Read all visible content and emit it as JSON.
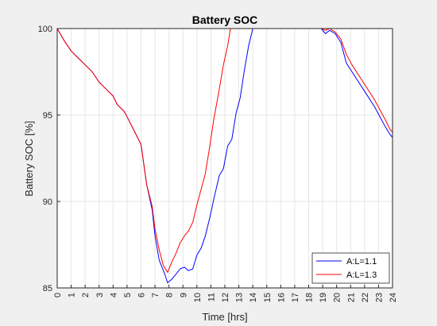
{
  "chart_data": {
    "type": "line",
    "title": "Battery SOC",
    "xlabel": "Time [hrs]",
    "ylabel": "Battery SOC [%]",
    "xlim": [
      0,
      24
    ],
    "ylim": [
      85,
      100
    ],
    "x_ticks": [
      "0",
      "1",
      "2",
      "3",
      "4",
      "5",
      "6",
      "7",
      "8",
      "9",
      "10",
      "11",
      "12",
      "13",
      "14",
      "15",
      "16",
      "17",
      "18",
      "19",
      "20",
      "21",
      "22",
      "23",
      "24"
    ],
    "y_ticks": [
      "85",
      "90",
      "95",
      "100"
    ],
    "grid": true,
    "legend_position": "bottom-right",
    "series": [
      {
        "name": "A:L=1.1",
        "color": "#0000ff",
        "points": [
          [
            0,
            100
          ],
          [
            0.5,
            99.3
          ],
          [
            1,
            98.7
          ],
          [
            1.5,
            98.3
          ],
          [
            2,
            97.9
          ],
          [
            2.5,
            97.5
          ],
          [
            3,
            96.9
          ],
          [
            3.5,
            96.5
          ],
          [
            4,
            96.1
          ],
          [
            4.3,
            95.6
          ],
          [
            4.8,
            95.2
          ],
          [
            5,
            94.9
          ],
          [
            5.5,
            94.1
          ],
          [
            6,
            93.3
          ],
          [
            6.4,
            91.0
          ],
          [
            6.8,
            89.5
          ],
          [
            7,
            88.0
          ],
          [
            7.3,
            86.6
          ],
          [
            7.7,
            85.8
          ],
          [
            7.9,
            85.3
          ],
          [
            8.2,
            85.5
          ],
          [
            8.5,
            85.8
          ],
          [
            8.8,
            86.1
          ],
          [
            9.1,
            86.2
          ],
          [
            9.4,
            86.0
          ],
          [
            9.7,
            86.1
          ],
          [
            10,
            86.9
          ],
          [
            10.3,
            87.3
          ],
          [
            10.6,
            88.0
          ],
          [
            10.9,
            89.0
          ],
          [
            11.2,
            90.1
          ],
          [
            11.6,
            91.5
          ],
          [
            11.9,
            91.9
          ],
          [
            12.2,
            93.2
          ],
          [
            12.5,
            93.6
          ],
          [
            12.8,
            95.1
          ],
          [
            13.1,
            96.0
          ],
          [
            13.4,
            97.6
          ],
          [
            13.7,
            99.0
          ],
          [
            14.0,
            100
          ],
          [
            18.9,
            100
          ],
          [
            19.2,
            99.7
          ],
          [
            19.5,
            99.9
          ],
          [
            19.9,
            99.7
          ],
          [
            20.3,
            99.2
          ],
          [
            20.7,
            98.0
          ],
          [
            21.1,
            97.5
          ],
          [
            21.5,
            97.0
          ],
          [
            21.9,
            96.5
          ],
          [
            22.3,
            96.0
          ],
          [
            22.7,
            95.5
          ],
          [
            23.1,
            94.9
          ],
          [
            23.5,
            94.3
          ],
          [
            23.8,
            93.9
          ],
          [
            24,
            93.7
          ]
        ]
      },
      {
        "name": "A:L=1.3",
        "color": "#ff0000",
        "points": [
          [
            0,
            100
          ],
          [
            0.5,
            99.3
          ],
          [
            1,
            98.7
          ],
          [
            1.5,
            98.3
          ],
          [
            2,
            97.9
          ],
          [
            2.5,
            97.5
          ],
          [
            3,
            96.9
          ],
          [
            3.5,
            96.5
          ],
          [
            4,
            96.1
          ],
          [
            4.3,
            95.6
          ],
          [
            4.8,
            95.2
          ],
          [
            5,
            94.9
          ],
          [
            5.5,
            94.1
          ],
          [
            6,
            93.3
          ],
          [
            6.4,
            91.0
          ],
          [
            6.8,
            89.7
          ],
          [
            7,
            88.4
          ],
          [
            7.3,
            87.2
          ],
          [
            7.6,
            86.3
          ],
          [
            7.9,
            85.9
          ],
          [
            8.2,
            86.5
          ],
          [
            8.5,
            87.0
          ],
          [
            8.8,
            87.6
          ],
          [
            9.1,
            88.0
          ],
          [
            9.4,
            88.3
          ],
          [
            9.7,
            88.8
          ],
          [
            10,
            89.8
          ],
          [
            10.3,
            90.7
          ],
          [
            10.6,
            91.6
          ],
          [
            10.9,
            93.1
          ],
          [
            11.2,
            94.7
          ],
          [
            11.6,
            96.5
          ],
          [
            11.9,
            97.9
          ],
          [
            12.2,
            99.0
          ],
          [
            12.4,
            100
          ],
          [
            18.9,
            100
          ],
          [
            19.2,
            99.9
          ],
          [
            19.5,
            100
          ],
          [
            19.9,
            99.8
          ],
          [
            20.3,
            99.4
          ],
          [
            20.7,
            98.5
          ],
          [
            21.1,
            97.9
          ],
          [
            21.5,
            97.4
          ],
          [
            21.9,
            96.9
          ],
          [
            22.3,
            96.4
          ],
          [
            22.7,
            95.9
          ],
          [
            23.1,
            95.3
          ],
          [
            23.5,
            94.7
          ],
          [
            23.8,
            94.2
          ],
          [
            24,
            94.0
          ]
        ]
      }
    ]
  }
}
